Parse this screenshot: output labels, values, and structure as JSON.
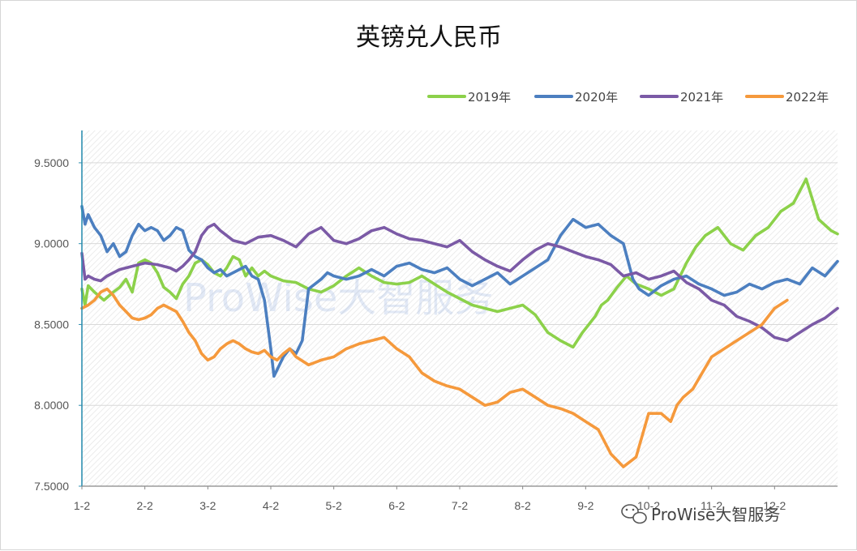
{
  "colors": {
    "2019": "#8cd14a",
    "2020": "#4c7fc0",
    "2021": "#7b5aa6",
    "2022": "#f5993c",
    "axis": "#2f8fb0",
    "grid": "#d9d9d9"
  },
  "watermark": {
    "brand": "ProWise大智服务",
    "corner": "ProWise大智服务",
    "icon": "wechat-icon"
  },
  "chart_data": {
    "type": "line",
    "title": "英镑兑人民币",
    "xlabel": "",
    "ylabel": "",
    "ylim": [
      7.5,
      9.7
    ],
    "yticks": [
      7.5,
      8.0,
      8.5,
      9.0,
      9.5
    ],
    "ytick_labels": [
      "7.5000",
      "8.0000",
      "8.5000",
      "9.0000",
      "9.5000"
    ],
    "xlim": [
      0,
      12
    ],
    "xticks": [
      0,
      1,
      2,
      3,
      4,
      5,
      6,
      7,
      8,
      9,
      10,
      11
    ],
    "xtick_labels": [
      "1-2",
      "2-2",
      "3-2",
      "4-2",
      "5-2",
      "6-2",
      "7-2",
      "8-2",
      "9-2",
      "10-2",
      "11-2",
      "12-2"
    ],
    "grid": true,
    "legend_position": "top-right",
    "series": [
      {
        "name": "2019年",
        "x": [
          0.0,
          0.05,
          0.1,
          0.2,
          0.35,
          0.5,
          0.6,
          0.7,
          0.8,
          0.9,
          1.0,
          1.1,
          1.2,
          1.3,
          1.4,
          1.5,
          1.6,
          1.7,
          1.8,
          1.9,
          2.0,
          2.1,
          2.2,
          2.3,
          2.4,
          2.5,
          2.6,
          2.7,
          2.8,
          2.9,
          3.0,
          3.2,
          3.4,
          3.6,
          3.8,
          4.0,
          4.2,
          4.4,
          4.6,
          4.8,
          5.0,
          5.2,
          5.4,
          5.6,
          5.8,
          6.0,
          6.2,
          6.4,
          6.6,
          6.8,
          7.0,
          7.2,
          7.4,
          7.6,
          7.8,
          7.95,
          8.05,
          8.15,
          8.25,
          8.35,
          8.5,
          8.65,
          8.8,
          9.0,
          9.2,
          9.4,
          9.6,
          9.75,
          9.9,
          10.1,
          10.3,
          10.5,
          10.7,
          10.9,
          11.1,
          11.3,
          11.5,
          11.7,
          11.9,
          12.0
        ],
        "values": [
          8.72,
          8.62,
          8.74,
          8.7,
          8.65,
          8.7,
          8.73,
          8.78,
          8.7,
          8.88,
          8.9,
          8.88,
          8.82,
          8.73,
          8.7,
          8.66,
          8.75,
          8.8,
          8.88,
          8.9,
          8.87,
          8.82,
          8.8,
          8.85,
          8.92,
          8.9,
          8.8,
          8.85,
          8.8,
          8.83,
          8.8,
          8.77,
          8.76,
          8.72,
          8.7,
          8.74,
          8.8,
          8.85,
          8.8,
          8.76,
          8.75,
          8.76,
          8.8,
          8.75,
          8.7,
          8.66,
          8.62,
          8.6,
          8.58,
          8.6,
          8.62,
          8.56,
          8.45,
          8.4,
          8.36,
          8.45,
          8.5,
          8.55,
          8.62,
          8.65,
          8.73,
          8.8,
          8.75,
          8.72,
          8.68,
          8.72,
          8.88,
          8.98,
          9.05,
          9.1,
          9.0,
          8.96,
          9.05,
          9.1,
          9.2,
          9.25,
          9.4,
          9.15,
          9.08,
          9.06
        ]
      },
      {
        "name": "2020年",
        "x": [
          0.0,
          0.05,
          0.1,
          0.2,
          0.3,
          0.4,
          0.5,
          0.6,
          0.7,
          0.8,
          0.9,
          1.0,
          1.1,
          1.2,
          1.3,
          1.4,
          1.5,
          1.6,
          1.7,
          1.8,
          1.9,
          2.0,
          2.1,
          2.2,
          2.3,
          2.4,
          2.5,
          2.6,
          2.7,
          2.8,
          2.9,
          3.0,
          3.05,
          3.1,
          3.2,
          3.3,
          3.4,
          3.5,
          3.6,
          3.7,
          3.8,
          3.9,
          4.0,
          4.2,
          4.4,
          4.6,
          4.8,
          5.0,
          5.2,
          5.4,
          5.6,
          5.8,
          6.0,
          6.2,
          6.4,
          6.6,
          6.8,
          7.0,
          7.2,
          7.4,
          7.6,
          7.8,
          8.0,
          8.2,
          8.4,
          8.6,
          8.75,
          8.85,
          9.0,
          9.2,
          9.4,
          9.6,
          9.8,
          10.0,
          10.2,
          10.4,
          10.6,
          10.8,
          11.0,
          11.2,
          11.4,
          11.6,
          11.8,
          12.0
        ],
        "values": [
          9.23,
          9.12,
          9.18,
          9.1,
          9.05,
          8.95,
          9.0,
          8.92,
          8.95,
          9.05,
          9.12,
          9.08,
          9.1,
          9.08,
          9.02,
          9.05,
          9.1,
          9.08,
          8.96,
          8.92,
          8.9,
          8.85,
          8.82,
          8.84,
          8.8,
          8.82,
          8.84,
          8.86,
          8.8,
          8.78,
          8.65,
          8.35,
          8.18,
          8.22,
          8.3,
          8.35,
          8.32,
          8.4,
          8.72,
          8.75,
          8.78,
          8.82,
          8.8,
          8.78,
          8.8,
          8.84,
          8.8,
          8.86,
          8.88,
          8.84,
          8.82,
          8.85,
          8.78,
          8.74,
          8.78,
          8.82,
          8.75,
          8.8,
          8.85,
          8.9,
          9.05,
          9.15,
          9.1,
          9.12,
          9.05,
          9.0,
          8.78,
          8.72,
          8.68,
          8.74,
          8.78,
          8.8,
          8.75,
          8.72,
          8.68,
          8.7,
          8.75,
          8.72,
          8.76,
          8.78,
          8.75,
          8.85,
          8.8,
          8.89
        ]
      },
      {
        "name": "2021年",
        "x": [
          0.0,
          0.05,
          0.1,
          0.2,
          0.3,
          0.4,
          0.5,
          0.6,
          0.8,
          1.0,
          1.2,
          1.4,
          1.5,
          1.6,
          1.7,
          1.8,
          1.9,
          2.0,
          2.1,
          2.2,
          2.4,
          2.6,
          2.8,
          3.0,
          3.2,
          3.4,
          3.6,
          3.8,
          4.0,
          4.2,
          4.4,
          4.6,
          4.8,
          5.0,
          5.2,
          5.4,
          5.6,
          5.8,
          6.0,
          6.2,
          6.4,
          6.6,
          6.8,
          7.0,
          7.2,
          7.4,
          7.6,
          7.8,
          8.0,
          8.2,
          8.4,
          8.6,
          8.8,
          9.0,
          9.2,
          9.4,
          9.6,
          9.8,
          10.0,
          10.2,
          10.4,
          10.6,
          10.8,
          11.0,
          11.2,
          11.4,
          11.6,
          11.8,
          12.0
        ],
        "values": [
          8.94,
          8.78,
          8.8,
          8.78,
          8.77,
          8.8,
          8.82,
          8.84,
          8.86,
          8.88,
          8.87,
          8.85,
          8.83,
          8.86,
          8.9,
          8.95,
          9.05,
          9.1,
          9.12,
          9.08,
          9.02,
          9.0,
          9.04,
          9.05,
          9.02,
          8.98,
          9.06,
          9.1,
          9.02,
          9.0,
          9.03,
          9.08,
          9.1,
          9.06,
          9.03,
          9.02,
          9.0,
          8.98,
          9.02,
          8.95,
          8.9,
          8.86,
          8.83,
          8.9,
          8.96,
          9.0,
          8.98,
          8.95,
          8.92,
          8.9,
          8.87,
          8.8,
          8.82,
          8.78,
          8.8,
          8.83,
          8.76,
          8.72,
          8.65,
          8.62,
          8.55,
          8.52,
          8.48,
          8.42,
          8.4,
          8.45,
          8.5,
          8.54,
          8.6
        ]
      },
      {
        "name": "2022年",
        "x": [
          0.0,
          0.1,
          0.2,
          0.3,
          0.4,
          0.5,
          0.6,
          0.7,
          0.8,
          0.9,
          1.0,
          1.1,
          1.2,
          1.3,
          1.4,
          1.5,
          1.6,
          1.7,
          1.8,
          1.9,
          2.0,
          2.1,
          2.2,
          2.3,
          2.4,
          2.5,
          2.6,
          2.7,
          2.8,
          2.9,
          3.0,
          3.1,
          3.2,
          3.3,
          3.4,
          3.6,
          3.8,
          4.0,
          4.2,
          4.4,
          4.6,
          4.8,
          5.0,
          5.2,
          5.4,
          5.6,
          5.8,
          6.0,
          6.2,
          6.4,
          6.6,
          6.8,
          7.0,
          7.2,
          7.4,
          7.6,
          7.8,
          8.0,
          8.2,
          8.4,
          8.6,
          8.8,
          9.0,
          9.2,
          9.35,
          9.45,
          9.55,
          9.7,
          9.85,
          10.0,
          10.2,
          10.4,
          10.6,
          10.8,
          11.0,
          11.2
        ],
        "values": [
          8.6,
          8.62,
          8.65,
          8.7,
          8.72,
          8.68,
          8.62,
          8.58,
          8.54,
          8.53,
          8.54,
          8.56,
          8.6,
          8.62,
          8.6,
          8.58,
          8.52,
          8.45,
          8.4,
          8.32,
          8.28,
          8.3,
          8.35,
          8.38,
          8.4,
          8.38,
          8.35,
          8.33,
          8.32,
          8.34,
          8.3,
          8.28,
          8.32,
          8.35,
          8.3,
          8.25,
          8.28,
          8.3,
          8.35,
          8.38,
          8.4,
          8.42,
          8.35,
          8.3,
          8.2,
          8.15,
          8.12,
          8.1,
          8.05,
          8.0,
          8.02,
          8.08,
          8.1,
          8.05,
          8.0,
          7.98,
          7.95,
          7.9,
          7.85,
          7.7,
          7.62,
          7.68,
          7.95,
          7.95,
          7.9,
          8.0,
          8.05,
          8.1,
          8.2,
          8.3,
          8.35,
          8.4,
          8.45,
          8.5,
          8.6,
          8.65
        ]
      }
    ]
  }
}
